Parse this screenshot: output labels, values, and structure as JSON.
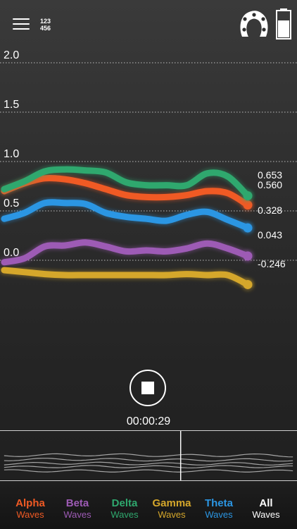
{
  "header": {
    "numpad_top": "123",
    "numpad_bottom": "456"
  },
  "colors": {
    "alpha": "#f05a24",
    "beta": "#9d5bb5",
    "delta": "#2fa86e",
    "gamma": "#d5a72b",
    "theta": "#2b96e3",
    "all": "#ffffff"
  },
  "chart_data": {
    "type": "line",
    "ylim": [
      -0.2,
      2.3
    ],
    "yticks": [
      "2.0",
      "1.5",
      "1.0",
      "0.5",
      "0.0"
    ],
    "grid": true,
    "x": [
      0,
      1,
      2,
      3,
      4,
      5,
      6,
      7,
      8,
      9,
      10,
      11,
      12
    ],
    "series": [
      {
        "key": "delta",
        "values": [
          0.72,
          0.8,
          0.9,
          0.92,
          0.91,
          0.89,
          0.79,
          0.76,
          0.76,
          0.76,
          0.88,
          0.85,
          0.653
        ],
        "end_label": "0.653"
      },
      {
        "key": "alpha",
        "values": [
          0.7,
          0.78,
          0.83,
          0.82,
          0.78,
          0.72,
          0.66,
          0.64,
          0.64,
          0.66,
          0.7,
          0.68,
          0.56
        ],
        "end_label": "0.560"
      },
      {
        "key": "theta",
        "values": [
          0.42,
          0.48,
          0.58,
          0.58,
          0.57,
          0.48,
          0.44,
          0.42,
          0.4,
          0.46,
          0.49,
          0.41,
          0.328
        ],
        "end_label": "0.328"
      },
      {
        "key": "beta",
        "values": [
          -0.02,
          0.02,
          0.14,
          0.15,
          0.18,
          0.14,
          0.09,
          0.1,
          0.09,
          0.12,
          0.17,
          0.12,
          0.043
        ],
        "end_label": "0.043"
      },
      {
        "key": "gamma",
        "values": [
          -0.1,
          -0.12,
          -0.14,
          -0.15,
          -0.15,
          -0.15,
          -0.15,
          -0.15,
          -0.15,
          -0.14,
          -0.15,
          -0.15,
          -0.246
        ],
        "end_label": "-0.246"
      }
    ]
  },
  "controls": {
    "timer": "00:00:29"
  },
  "tabs": [
    {
      "key": "alpha",
      "label": "Alpha",
      "sub": "Waves",
      "color": "#f05a24"
    },
    {
      "key": "beta",
      "label": "Beta",
      "sub": "Waves",
      "color": "#9d5bb5"
    },
    {
      "key": "delta",
      "label": "Delta",
      "sub": "Waves",
      "color": "#2fa86e"
    },
    {
      "key": "gamma",
      "label": "Gamma",
      "sub": "Waves",
      "color": "#d5a72b"
    },
    {
      "key": "theta",
      "label": "Theta",
      "sub": "Waves",
      "color": "#2b96e3"
    },
    {
      "key": "all",
      "label": "All",
      "sub": "Waves",
      "color": "#ffffff"
    }
  ]
}
